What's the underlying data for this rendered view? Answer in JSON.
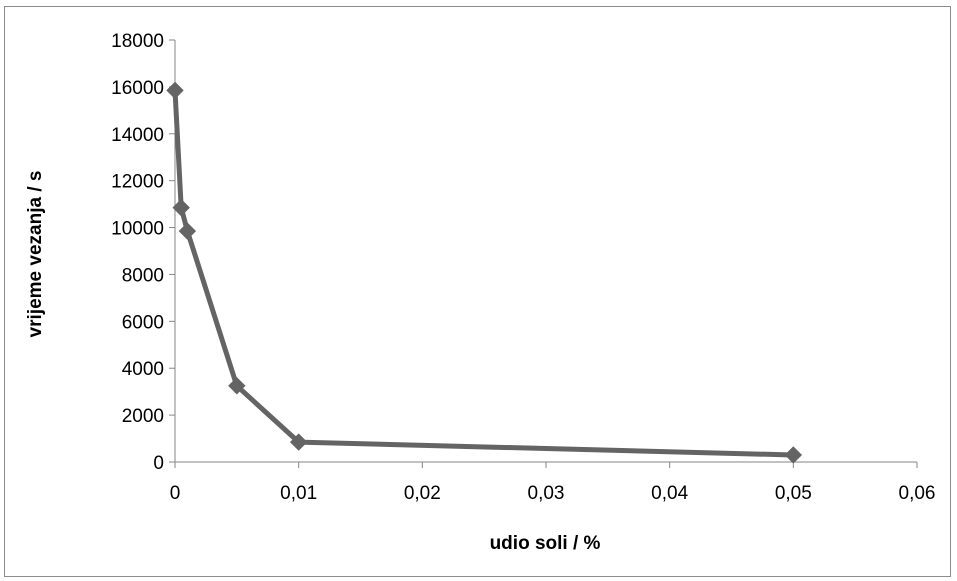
{
  "chart_data": {
    "type": "line",
    "xlabel": "udio soli / %",
    "ylabel": "vrijeme vezanja / s",
    "xlim": [
      0,
      0.06
    ],
    "ylim": [
      0,
      18000
    ],
    "x_ticks": [
      0,
      0.01,
      0.02,
      0.03,
      0.04,
      0.05,
      0.06
    ],
    "x_tick_labels": [
      "0",
      "0,01",
      "0,02",
      "0,03",
      "0,04",
      "0,05",
      "0,06"
    ],
    "y_ticks": [
      0,
      2000,
      4000,
      6000,
      8000,
      10000,
      12000,
      14000,
      16000,
      18000
    ],
    "y_tick_labels": [
      "0",
      "2000",
      "4000",
      "6000",
      "8000",
      "10000",
      "12000",
      "14000",
      "16000",
      "18000"
    ],
    "grid": false,
    "legend": "none",
    "series": [
      {
        "marker": "diamond",
        "color": "#646464",
        "x": [
          0,
          0.0005,
          0.001,
          0.005,
          0.01,
          0.05
        ],
        "y": [
          15850,
          10850,
          9850,
          3250,
          850,
          300
        ]
      }
    ]
  }
}
